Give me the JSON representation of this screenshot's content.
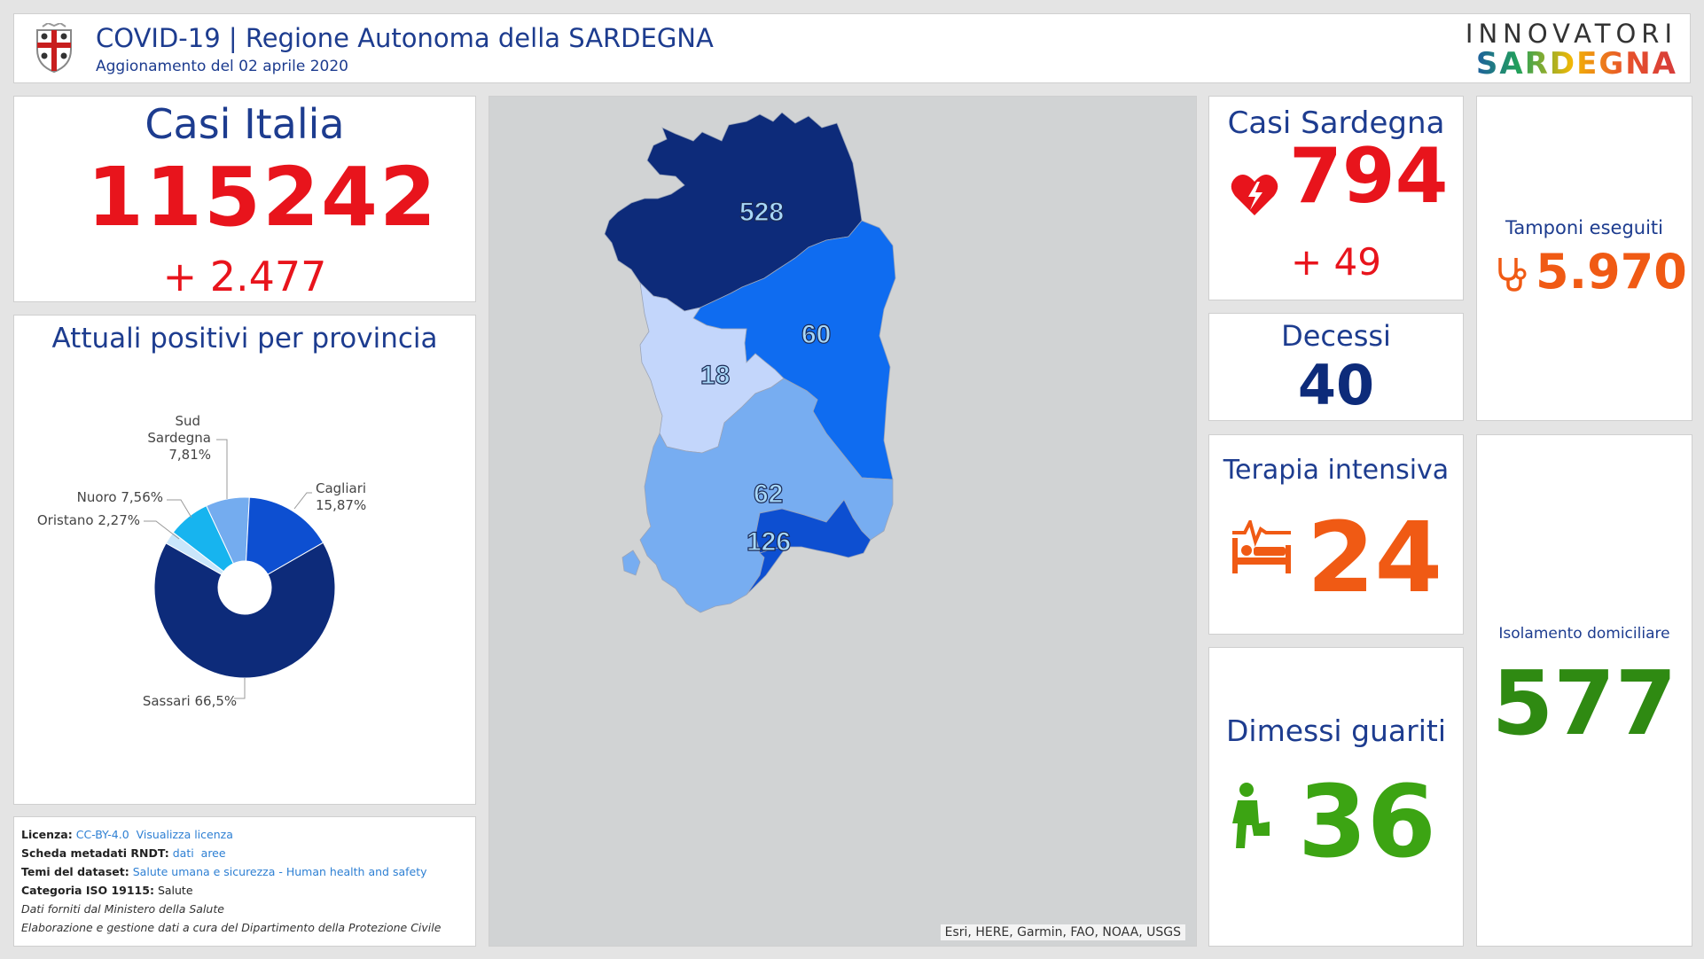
{
  "header": {
    "title": "COVID-19 | Regione Autonoma della SARDEGNA",
    "subtitle": "Aggionamento del 02 aprile 2020",
    "brand_top": "INNOVATORI",
    "brand_bottom": "SARDEGNA"
  },
  "casi_italia": {
    "title": "Casi Italia",
    "value": "115242",
    "delta": "+ 2.477"
  },
  "province_chart": {
    "title": "Attuali positivi per provincia"
  },
  "chart_data": {
    "type": "pie",
    "title": "Attuali positivi per provincia",
    "slices": [
      {
        "label": "Sassari",
        "value": 66.5,
        "display": "Sassari 66,5%",
        "color": "#0d2b7a"
      },
      {
        "label": "Oristano",
        "value": 2.27,
        "display": "Oristano 2,27%",
        "color": "#c9e6fb"
      },
      {
        "label": "Nuoro",
        "value": 7.56,
        "display": "Nuoro 7,56%",
        "color": "#17b4ef"
      },
      {
        "label": "Sud Sardegna",
        "value": 7.81,
        "display": "Sud Sardegna 7,81%",
        "color": "#74acef"
      },
      {
        "label": "Cagliari",
        "value": 15.87,
        "display": "Cagliari 15,87%",
        "color": "#0d4fd1"
      }
    ]
  },
  "license": {
    "licenza_label": "Licenza:",
    "licenza_value": "CC-BY-4.0",
    "licenza_link": "Visualizza licenza",
    "scheda_label": "Scheda metadati RNDT:",
    "scheda_link1": "dati",
    "scheda_link2": "aree",
    "temi_label": "Temi del dataset:",
    "temi_value": "Salute umana e sicurezza - Human health and safety",
    "categoria_label": "Categoria ISO 19115:",
    "categoria_value": "Salute",
    "note1": "Dati forniti dal Ministero della Salute",
    "note2": "Elaborazione e gestione dati a cura del Dipartimento della Protezione Civile"
  },
  "map": {
    "labels": {
      "sassari": "528",
      "nuoro": "60",
      "oristano": "18",
      "sud_sardegna": "62",
      "cagliari": "126"
    },
    "colors": {
      "sassari": "#0d2b7a",
      "nuoro": "#0f6cf0",
      "oristano": "#c3d6fb",
      "sud_sardegna": "#77adf1",
      "cagliari": "#0d4fd1"
    },
    "attribution": "Esri, HERE, Garmin, FAO, NOAA, USGS"
  },
  "casi_sardegna": {
    "title": "Casi Sardegna",
    "value": "794",
    "delta": "+ 49",
    "icon": "heart-bolt-icon"
  },
  "decessi": {
    "title": "Decessi",
    "value": "40"
  },
  "terapia": {
    "title": "Terapia intensiva",
    "value": "24",
    "icon": "hospital-bed-icon"
  },
  "dimessi": {
    "title": "Dimessi guariti",
    "value": "36",
    "icon": "walking-person-icon"
  },
  "tamponi": {
    "title": "Tamponi eseguiti",
    "value": "5.970",
    "icon": "stethoscope-icon"
  },
  "isolamento": {
    "title": "Isolamento domiciliare",
    "value": "577"
  }
}
